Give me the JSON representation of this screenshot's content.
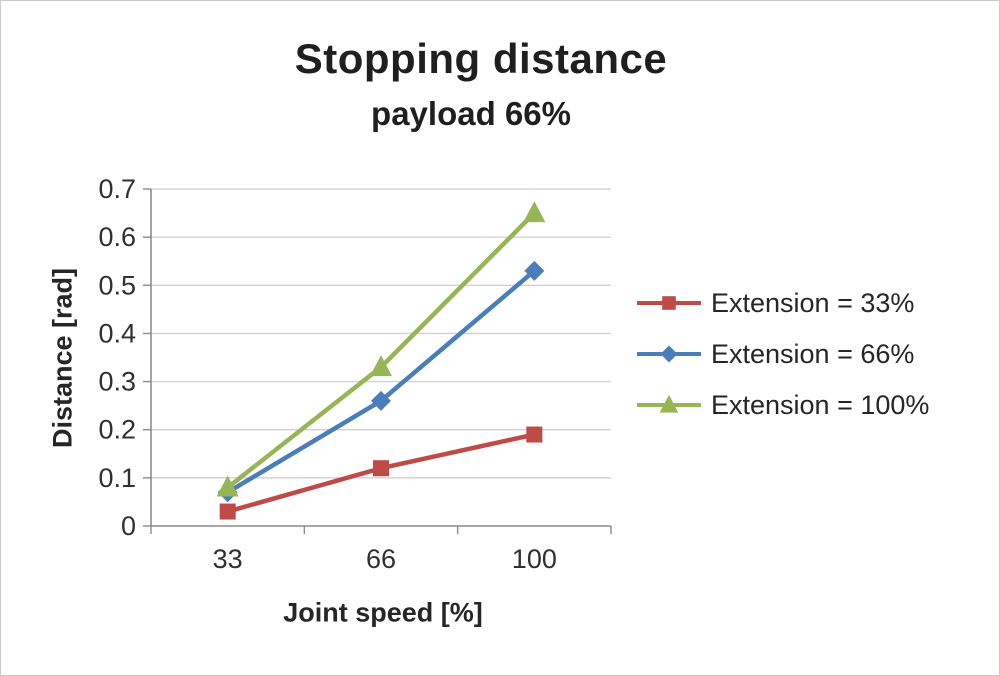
{
  "chart_data": {
    "type": "line",
    "title": "Stopping distance",
    "subtitle": "payload 66%",
    "xlabel": "Joint speed [%]",
    "ylabel": "Distance [rad]",
    "categories": [
      "33",
      "66",
      "100"
    ],
    "series": [
      {
        "name": "Extension = 33%",
        "marker": "square",
        "color": "#bf4b47",
        "values": [
          0.03,
          0.12,
          0.19
        ]
      },
      {
        "name": "Extension = 66%",
        "marker": "diamond",
        "color": "#4a7ebb",
        "values": [
          0.07,
          0.26,
          0.53
        ]
      },
      {
        "name": "Extension = 100%",
        "marker": "triangle",
        "color": "#98b556",
        "values": [
          0.08,
          0.33,
          0.65
        ]
      }
    ],
    "ylim": [
      0,
      0.7
    ],
    "ytick_step": 0.1,
    "grid": true,
    "grid_color": "#d2d2d2",
    "axis_color": "#8c8c8c",
    "legend_position": "right"
  }
}
